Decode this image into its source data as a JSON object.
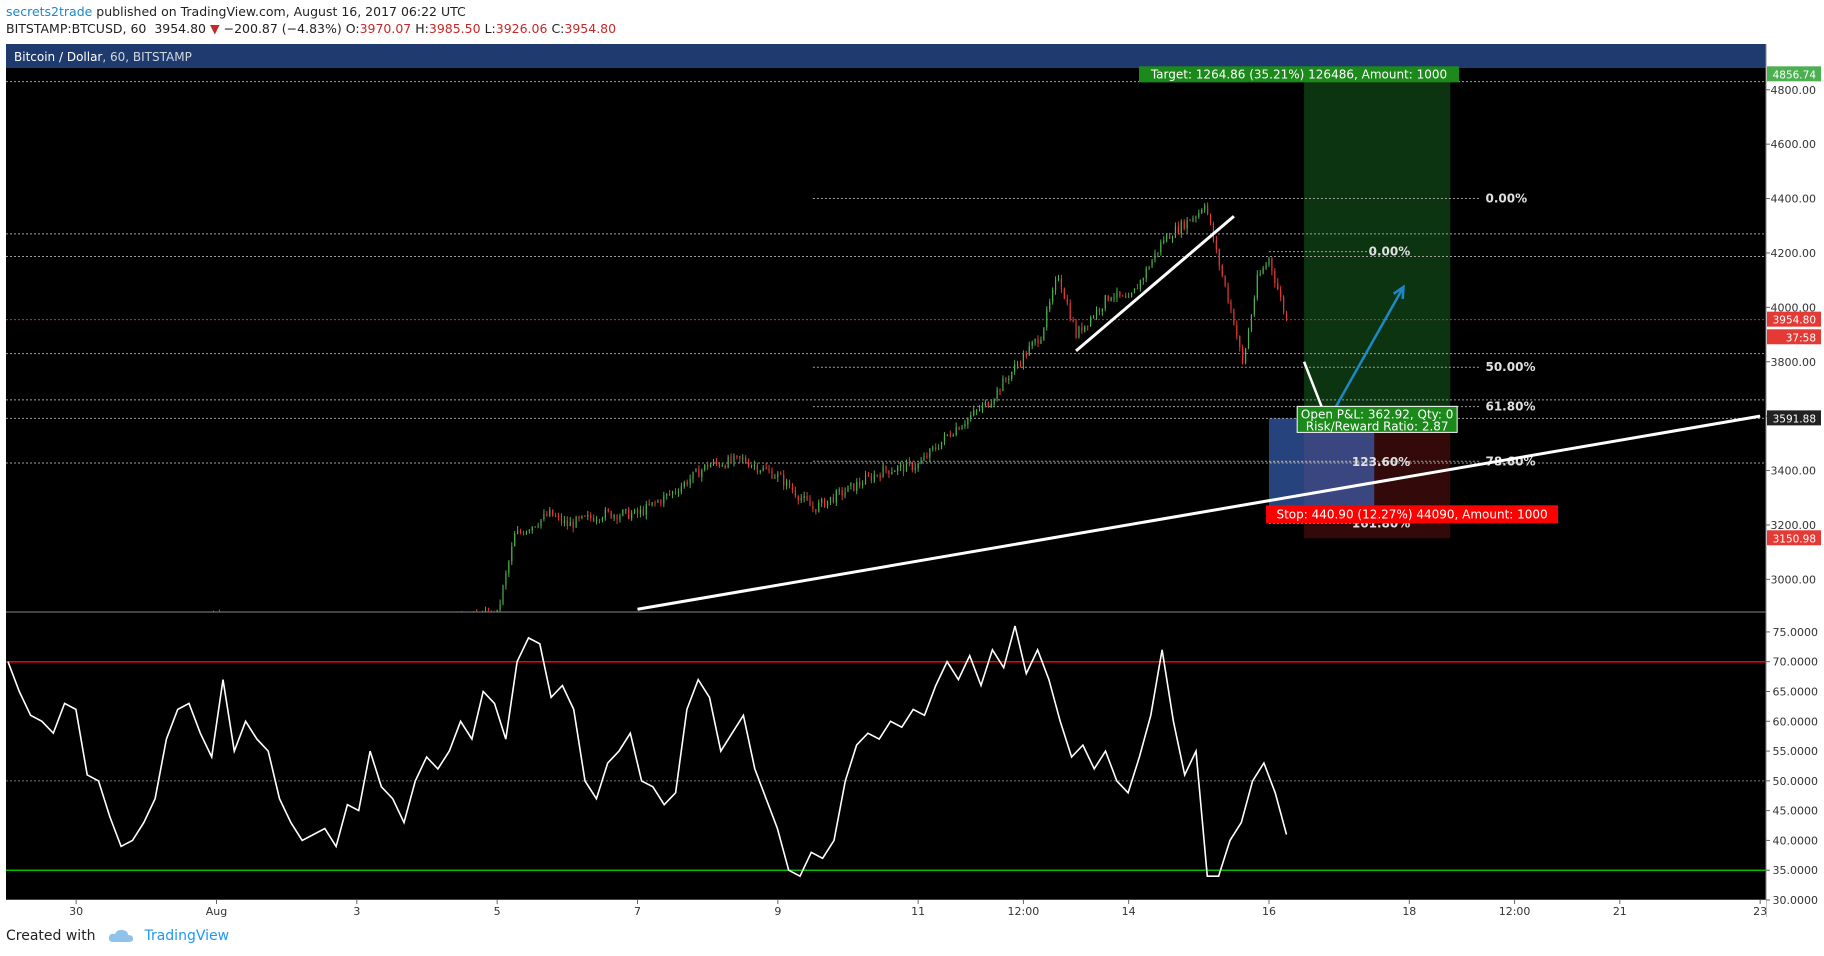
{
  "header": {
    "author": "secrets2trade",
    "published": " published on TradingView.com, August 16, 2017 06:22 UTC",
    "symbol": "BITSTAMP:BTCUSD, 60",
    "last": "3954.80",
    "change": "−200.87 (−4.83%)",
    "o_label": "O:",
    "o": "3970.07",
    "h_label": "H:",
    "h": "3985.50",
    "l_label": "L:",
    "l": "3926.06",
    "c_label": "C:",
    "c": "3954.80"
  },
  "pane_title": {
    "name": "Bitcoin / Dollar",
    "interval": ", 60, ",
    "exchange": "BITSTAMP"
  },
  "footer": {
    "created_with": "Created with",
    "brand": "TradingView"
  },
  "colors": {
    "background": "#000000",
    "up": "#4caf50",
    "down": "#e53935",
    "rsi_line": "#ffffff",
    "rsi_upper": "#ff0000",
    "rsi_lower": "#00c000",
    "target_bg": "#1b8a1b",
    "stop_bg": "#ff0000",
    "title_bar": "#1e3a6e"
  },
  "chart_data": [
    {
      "type": "candlestick",
      "title": "Bitcoin / Dollar",
      "ylim": [
        2880,
        4880
      ],
      "y_ticks": [
        "4800.00",
        "4600.00",
        "4400.00",
        "4200.00",
        "4000.00",
        "3800.00",
        "3600.00",
        "3400.00",
        "3200.00",
        "3000.00"
      ],
      "price_labels": [
        {
          "text": "4856.74",
          "value": 4856.74,
          "color": "#4caf50"
        },
        {
          "text": "3954.80",
          "value": 3954.8,
          "color": "#e53935"
        },
        {
          "text": "37:58",
          "value": 3890,
          "color": "#e53935"
        },
        {
          "text": "3591.88",
          "value": 3591.88,
          "color": "#222222"
        },
        {
          "text": "3150.98",
          "value": 3150.98,
          "color": "#e53935"
        }
      ],
      "x_ticks": [
        "30",
        "Aug",
        "3",
        "5",
        "7",
        "9",
        "11",
        "12:00",
        "14",
        "16",
        "18",
        "12:00",
        "21",
        "23"
      ],
      "x_tick_dates": [
        "2017-07-30",
        "2017-08-01",
        "2017-08-03",
        "2017-08-05",
        "2017-08-07",
        "2017-08-09",
        "2017-08-11",
        "2017-08-12 12:00",
        "2017-08-14",
        "2017-08-16",
        "2017-08-18",
        "2017-08-19 12:00",
        "2017-08-21",
        "2017-08-23"
      ],
      "close_path": [
        [
          "2017-07-29",
          2740
        ],
        [
          "2017-07-31",
          2800
        ],
        [
          "2017-08-01",
          2860
        ],
        [
          "2017-08-02",
          2720
        ],
        [
          "2017-08-03",
          2770
        ],
        [
          "2017-08-04",
          2840
        ],
        [
          "2017-08-05 00:00",
          2870
        ],
        [
          "2017-08-05 06:00",
          3160
        ],
        [
          "2017-08-05 18:00",
          3240
        ],
        [
          "2017-08-06",
          3200
        ],
        [
          "2017-08-06 12:00",
          3240
        ],
        [
          "2017-08-07",
          3240
        ],
        [
          "2017-08-07 12:00",
          3320
        ],
        [
          "2017-08-08",
          3420
        ],
        [
          "2017-08-08 12:00",
          3440
        ],
        [
          "2017-08-09",
          3380
        ],
        [
          "2017-08-09 12:00",
          3260
        ],
        [
          "2017-08-10",
          3330
        ],
        [
          "2017-08-10 12:00",
          3400
        ],
        [
          "2017-08-11",
          3420
        ],
        [
          "2017-08-11 12:00",
          3550
        ],
        [
          "2017-08-12",
          3650
        ],
        [
          "2017-08-12 12:00",
          3820
        ],
        [
          "2017-08-12 18:00",
          3900
        ],
        [
          "2017-08-13",
          4120
        ],
        [
          "2017-08-13 06:00",
          3900
        ],
        [
          "2017-08-13 18:00",
          4050
        ],
        [
          "2017-08-14",
          4020
        ],
        [
          "2017-08-14 12:00",
          4250
        ],
        [
          "2017-08-15",
          4350
        ],
        [
          "2017-08-15 02:00",
          4390
        ],
        [
          "2017-08-15 06:00",
          4200
        ],
        [
          "2017-08-15 12:00",
          3950
        ],
        [
          "2017-08-15 15:00",
          3790
        ],
        [
          "2017-08-15 20:00",
          4100
        ],
        [
          "2017-08-16 00:00",
          4180
        ],
        [
          "2017-08-16 06:00",
          3955
        ]
      ],
      "fib_levels": [
        {
          "label": "0.00%",
          "value": 4400
        },
        {
          "label": "50.00%",
          "value": 3780
        },
        {
          "label": "61.80%",
          "value": 3635
        },
        {
          "label": "78.60%",
          "value": 3434
        },
        {
          "label": "0.00%",
          "value": 4205
        },
        {
          "label": "123.60%",
          "value": 3432
        },
        {
          "label": "161.80%",
          "value": 3206
        }
      ],
      "horizontal_lines": [
        4830,
        4270,
        4187,
        3954.8,
        3830,
        3660,
        3591.88,
        3428
      ],
      "trendlines": [
        {
          "from": [
            "2017-08-07 00:00",
            2890
          ],
          "to": [
            "2017-08-23",
            3600
          ]
        },
        {
          "from": [
            "2017-08-13 06:00",
            3840
          ],
          "to": [
            "2017-08-15 12:00",
            4335
          ]
        }
      ],
      "arrows": [
        {
          "color": "#ffffff",
          "from": [
            "2017-08-16 12:00",
            3800
          ],
          "to": [
            "2017-08-16 20:00",
            3580
          ]
        },
        {
          "color": "#1e88c7",
          "from": [
            "2017-08-16 20:00",
            3580
          ],
          "to": [
            "2017-08-17 22:00",
            4075
          ]
        }
      ],
      "position": {
        "entry": 3591.88,
        "target_price": 4856.74,
        "stop_price": 3150.98,
        "time_start": "2017-08-16 12:00",
        "time_end": "2017-08-18 14:00",
        "target_label": "Target: 1264.86 (35.21%) 126486, Amount: 1000",
        "stop_label": "Stop: 440.90 (12.27%) 44090, Amount: 1000",
        "pnl_label": "Open P&L: 362.92, Qty: 0",
        "rr_label": "Risk/Reward Ratio: 2.87"
      },
      "box": {
        "from": [
          "2017-08-16 00:00",
          3591.88
        ],
        "to": [
          "2017-08-17 12:00",
          3220
        ],
        "color": "#3f6fd1"
      }
    },
    {
      "type": "line",
      "title": "RSI",
      "ylim": [
        30,
        77
      ],
      "y_ticks": [
        "75.0000",
        "70.0000",
        "65.0000",
        "60.0000",
        "55.0000",
        "50.0000",
        "45.0000",
        "40.0000",
        "35.0000",
        "30.0000"
      ],
      "bands": [
        70,
        50,
        35
      ],
      "series": [
        {
          "values": [
            70,
            65,
            61,
            60,
            58,
            63,
            62,
            51,
            50,
            44,
            39,
            40,
            43,
            47,
            57,
            62,
            63,
            58,
            54,
            67,
            55,
            60,
            57,
            55,
            47,
            43,
            40,
            41,
            42,
            39,
            46,
            45,
            55,
            49,
            47,
            43,
            50,
            54,
            52,
            55,
            60,
            57,
            65,
            63,
            57,
            70,
            74,
            73,
            64,
            66,
            62,
            50,
            47,
            53,
            55,
            58,
            50,
            49,
            46,
            48,
            62,
            67,
            64,
            55,
            58,
            61,
            52,
            47,
            42,
            35,
            34,
            38,
            37,
            40,
            50,
            56,
            58,
            57,
            60,
            59,
            62,
            61,
            66,
            70,
            67,
            71,
            66,
            72,
            69,
            76,
            68,
            72,
            67,
            60,
            54,
            56,
            52,
            55,
            50,
            48,
            54,
            61,
            72,
            60,
            51,
            55,
            34,
            34,
            40,
            43,
            50,
            53,
            48,
            41
          ]
        }
      ]
    }
  ]
}
